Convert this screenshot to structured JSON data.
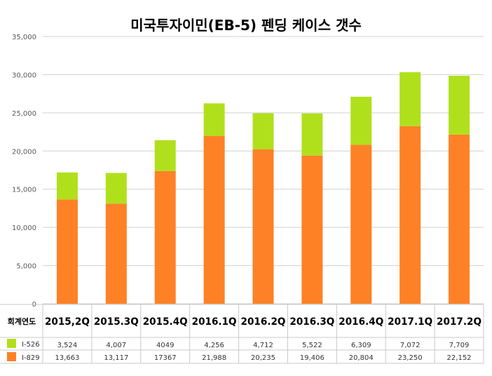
{
  "chart_data": {
    "type": "bar",
    "stacked": true,
    "title": "미국투자이민(EB-5) 펜딩 케이스 갯수",
    "row_header": "회계연도",
    "categories": [
      "2015,2Q",
      "2015.3Q",
      "2015.4Q",
      "2016.1Q",
      "2016.2Q",
      "2016.3Q",
      "2016.4Q",
      "2017.1Q",
      "2017.2Q"
    ],
    "series": [
      {
        "name": "I-829",
        "color": "#fe8126",
        "values": [
          13663,
          13117,
          17367,
          21988,
          20235,
          19406,
          20804,
          23250,
          22152
        ],
        "labels": [
          "13,663",
          "13,117",
          "17367",
          "21,988",
          "20,235",
          "19,406",
          "20,804",
          "23,250",
          "22,152"
        ]
      },
      {
        "name": "I-526",
        "color": "#b0e01c",
        "values": [
          3524,
          4007,
          4049,
          4256,
          4712,
          5522,
          6309,
          7072,
          7709
        ],
        "labels": [
          "3,524",
          "4,007",
          "4049",
          "4,256",
          "4,712",
          "5,522",
          "6,309",
          "7,072",
          "7,709"
        ]
      }
    ],
    "ylim": [
      0,
      35000
    ],
    "yticks": [
      0,
      5000,
      10000,
      15000,
      20000,
      25000,
      30000,
      35000
    ],
    "ytick_labels": [
      "0",
      "5,000",
      "10,000",
      "15,000",
      "20,000",
      "25,000",
      "30,000",
      "35,000"
    ],
    "grid": true,
    "legend": "data-table"
  }
}
